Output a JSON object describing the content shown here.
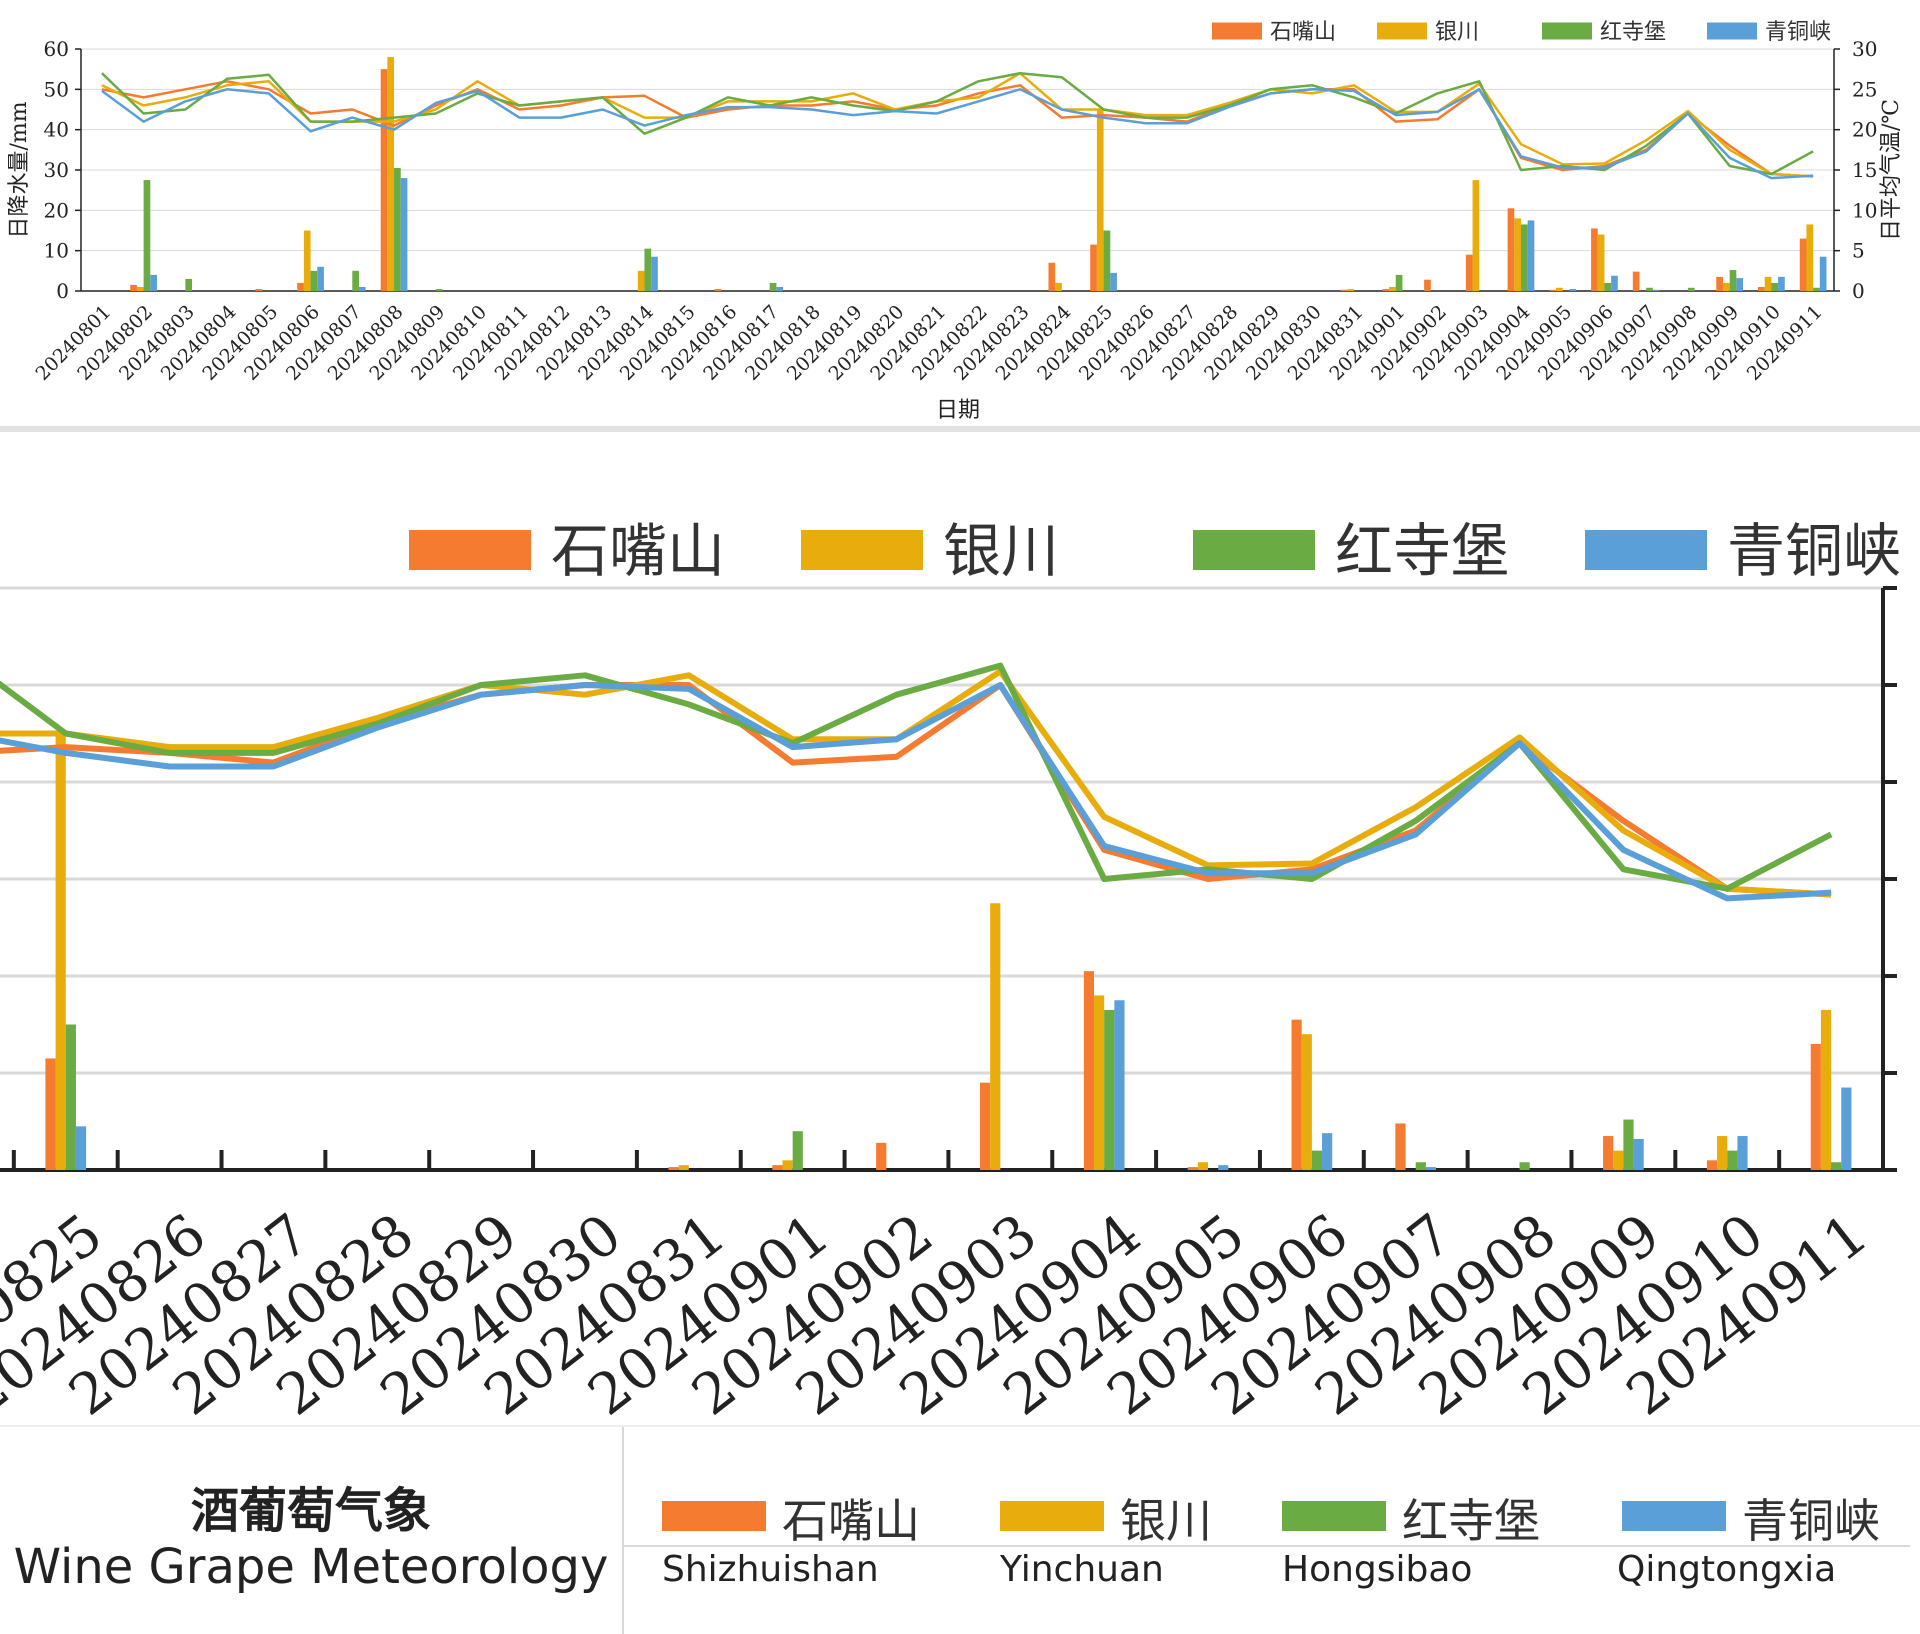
{
  "chart_data": [
    {
      "type": "bar+line",
      "xlabel": "日期",
      "ylabel_left": "日降水量/mm",
      "ylabel_right": "日平均气温/℃",
      "ylim_left": [
        0,
        60
      ],
      "ylim_right": [
        0,
        30
      ],
      "yticks_left": [
        "0",
        "10",
        "20",
        "30",
        "40",
        "50",
        "60"
      ],
      "yticks_right": [
        "0",
        "5",
        "10",
        "15",
        "20",
        "25",
        "30"
      ],
      "grid": true,
      "legend_position": "top-right",
      "categories": [
        "20240801",
        "20240802",
        "20240803",
        "20240804",
        "20240805",
        "20240806",
        "20240807",
        "20240808",
        "20240809",
        "20240810",
        "20240811",
        "20240812",
        "20240813",
        "20240814",
        "20240815",
        "20240816",
        "20240817",
        "20240818",
        "20240819",
        "20240820",
        "20240821",
        "20240822",
        "20240823",
        "20240824",
        "20240825",
        "20240826",
        "20240827",
        "20240828",
        "20240829",
        "20240830",
        "20240831",
        "20240901",
        "20240902",
        "20240903",
        "20240904",
        "20240905",
        "20240906",
        "20240907",
        "20240908",
        "20240909",
        "20240910",
        "20240911"
      ],
      "series": [
        {
          "name": "石嘴山",
          "color": "#f47b30",
          "precipitation": [
            0,
            1.5,
            0,
            0,
            0.5,
            2,
            0,
            55,
            0,
            0,
            0,
            0,
            0,
            0,
            0,
            0.5,
            0,
            0,
            0,
            0,
            0,
            0,
            0,
            7,
            11.5,
            0,
            0,
            0,
            0,
            0,
            0.3,
            0.5,
            2.8,
            9,
            20.5,
            0.3,
            15.5,
            4.8,
            0,
            3.5,
            1,
            13
          ],
          "temperature": [
            25,
            24,
            25,
            26,
            25,
            22,
            22.5,
            20.5,
            23,
            25,
            22.5,
            23,
            24,
            24.2,
            21.5,
            22.5,
            23,
            23,
            23.5,
            22.5,
            23,
            24.5,
            25.5,
            21.5,
            21.8,
            21.5,
            21,
            23,
            24.5,
            25,
            25,
            21,
            21.3,
            25,
            16.5,
            15,
            15.5,
            17.5,
            22,
            18,
            14.5,
            14.2
          ]
        },
        {
          "name": "银川",
          "color": "#e8ad0d",
          "precipitation": [
            0,
            1,
            0,
            0,
            0,
            15,
            0,
            58,
            0,
            0,
            0,
            0,
            0,
            5,
            0,
            0,
            0,
            0,
            0,
            0,
            0,
            0,
            0,
            2,
            45,
            0,
            0,
            0,
            0,
            0,
            0.5,
            1,
            0,
            27.5,
            18,
            0.8,
            14,
            0,
            0,
            2,
            3.5,
            16.5
          ],
          "temperature": [
            25.5,
            23,
            24,
            25.5,
            26,
            21,
            21,
            21,
            22.5,
            26,
            23,
            23.5,
            24,
            21.5,
            21.5,
            23.5,
            23.5,
            23.5,
            24.5,
            22.5,
            23.5,
            24,
            27,
            22.5,
            22.5,
            21.8,
            21.8,
            23.3,
            25,
            24.5,
            25.5,
            22.2,
            22.2,
            25.7,
            18.2,
            15.7,
            15.8,
            18.7,
            22.3,
            17.5,
            14.5,
            14.2
          ]
        },
        {
          "name": "红寺堡",
          "color": "#6aab44",
          "precipitation": [
            0,
            27.5,
            3,
            0,
            0,
            5,
            5,
            30.5,
            0.5,
            0,
            0,
            0,
            0,
            10.5,
            0,
            0,
            2,
            0,
            0,
            0,
            0,
            0,
            0,
            0,
            15,
            0,
            0,
            0,
            0,
            0,
            0,
            4,
            0,
            0,
            16.5,
            0,
            2,
            0.8,
            0.8,
            5.2,
            2,
            0.8
          ],
          "temperature": [
            27,
            22,
            22.5,
            26.3,
            26.8,
            21,
            21,
            21.5,
            22,
            24.5,
            23,
            23.5,
            24,
            19.5,
            21.5,
            24,
            23,
            24,
            23,
            22.3,
            23.5,
            26,
            27,
            26.5,
            22.5,
            21.5,
            21.5,
            23,
            25,
            25.5,
            24,
            22,
            24.5,
            26,
            15,
            15.5,
            15,
            18,
            22,
            15.5,
            14.5,
            17.3
          ]
        },
        {
          "name": "青铜峡",
          "color": "#5a9fd8",
          "precipitation": [
            0,
            4,
            0,
            0,
            0,
            6,
            1,
            28,
            0,
            0,
            0,
            0,
            0,
            8.5,
            0,
            0,
            1,
            0,
            0,
            0,
            0,
            0,
            0,
            0,
            4.5,
            0,
            0,
            0,
            0,
            0,
            0,
            0,
            0,
            0,
            17.5,
            0.5,
            3.8,
            0.3,
            0,
            3.2,
            3.5,
            8.5
          ],
          "temperature": [
            24.8,
            21,
            23.5,
            25,
            24.5,
            19.8,
            21.5,
            20,
            23.3,
            24.8,
            21.5,
            21.5,
            22.5,
            20.5,
            21.8,
            22.8,
            22.8,
            22.5,
            21.8,
            22.3,
            22,
            23.5,
            25,
            22.5,
            21.5,
            20.8,
            20.8,
            22.8,
            24.5,
            25,
            24.8,
            21.8,
            22.2,
            25,
            16.7,
            15.3,
            15.3,
            17.3,
            22,
            16.5,
            14,
            14.3
          ]
        }
      ]
    },
    {
      "type": "bar+line",
      "zoomed": true,
      "categories": [
        "20240824",
        "20240825",
        "20240826",
        "20240827",
        "20240828",
        "20240829",
        "20240830",
        "20240831",
        "20240901",
        "20240902",
        "20240903",
        "20240904",
        "20240905",
        "20240906",
        "20240907",
        "20240908",
        "20240909",
        "20240910",
        "20240911"
      ],
      "grid": true,
      "legend_position": "top"
    }
  ],
  "legend_labels": [
    "石嘴山",
    "银川",
    "红寺堡",
    "青铜峡"
  ],
  "footer": {
    "title_zh": "酒葡萄气象",
    "title_en": "Wine Grape Meteorology",
    "legend": [
      {
        "zh": "石嘴山",
        "en": "Shizhuishan",
        "color": "#f47b30"
      },
      {
        "zh": "银川",
        "en": "Yinchuan",
        "color": "#e8ad0d"
      },
      {
        "zh": "红寺堡",
        "en": "Hongsibao",
        "color": "#6aab44"
      },
      {
        "zh": "青铜峡",
        "en": "Qingtongxia",
        "color": "#5a9fd8"
      }
    ]
  }
}
